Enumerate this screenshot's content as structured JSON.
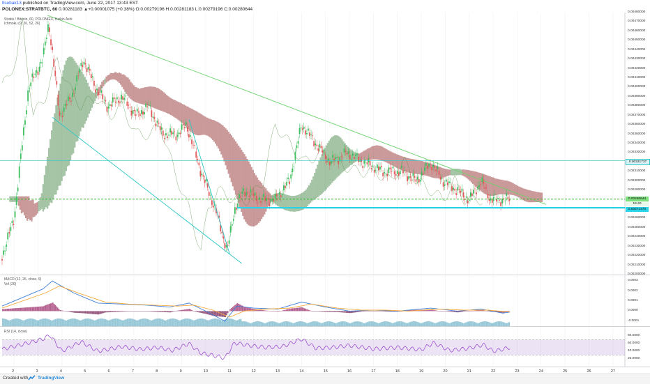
{
  "header": {
    "author": "tlsebak13",
    "published": "published on TradingView.com, June 22, 2017 13:43 EST",
    "symbol": "POLONEX:STRATBTC, 60",
    "ohlc": "0.00281183 ▲+0.00001075 (+0.38%) O:0.00279196 H:0.00281183 L:0.00279196 C:0.00280644"
  },
  "panes": {
    "main": {
      "title": "Stratis / Bitcoin, 60, POLONIEX, Heikin Ashi",
      "indicator": "Ichmoku (9, 26, 52, 26)"
    },
    "macd": {
      "title": "MACD (12, 26, close, 9)",
      "vol": "Vol (20)"
    },
    "rsi": {
      "title": "RSI (14, close)"
    }
  },
  "price_tags": {
    "upper": "0.00321737",
    "current": "0.00280644",
    "timer": "16:40",
    "support": "0.00271370"
  },
  "footer": {
    "created_with": "Created with",
    "brand": "TradingView"
  },
  "colors": {
    "up": "#3fbf5f",
    "down": "#e05b5b",
    "trendline": "#6ad26a",
    "channel": "#2ec7c7",
    "support": "#2ad3e6",
    "macd_line": "#3f7fd8",
    "signal_line": "#f4a83a",
    "rsi": "#9b4fcf",
    "cloud_bull": "#3a7d3a",
    "cloud_bear": "#8c2020"
  },
  "chart_data": {
    "type": "candlestick",
    "style": "Heikin Ashi",
    "x_ticks": [
      "2",
      "3",
      "4",
      "5",
      "6",
      "7",
      "8",
      "9",
      "10",
      "11",
      "12",
      "13",
      "14",
      "15",
      "16",
      "17",
      "18",
      "19",
      "20",
      "21",
      "22",
      "23",
      "24",
      "25",
      "26",
      "27"
    ],
    "y_ticks": [
      "0.00480000",
      "0.00470000",
      "0.00460000",
      "0.00450000",
      "0.00440000",
      "0.00430000",
      "0.00420000",
      "0.00410000",
      "0.00400000",
      "0.00390000",
      "0.00380000",
      "0.00370000",
      "0.00360000",
      "0.00350000",
      "0.00340000",
      "0.00330000",
      "0.00310000",
      "0.00300000",
      "0.00290000",
      "0.00260000",
      "0.00250000",
      "0.00240000",
      "0.00230000",
      "0.00220000",
      "0.00210000",
      "0.00200000"
    ],
    "ylim": [
      0.002,
      0.0048
    ],
    "xlim": [
      1.5,
      27.5
    ],
    "price_path": [
      [
        1.5,
        0.0022
      ],
      [
        2.0,
        0.0026
      ],
      [
        2.6,
        0.004
      ],
      [
        3.2,
        0.0043
      ],
      [
        3.45,
        0.0047
      ],
      [
        3.9,
        0.0037
      ],
      [
        4.4,
        0.0039
      ],
      [
        4.9,
        0.0043
      ],
      [
        5.4,
        0.004
      ],
      [
        5.9,
        0.0038
      ],
      [
        6.5,
        0.0039
      ],
      [
        7.1,
        0.0037
      ],
      [
        7.6,
        0.0038
      ],
      [
        8.2,
        0.0035
      ],
      [
        8.8,
        0.0035
      ],
      [
        9.2,
        0.0036
      ],
      [
        9.8,
        0.0031
      ],
      [
        10.4,
        0.0027
      ],
      [
        10.9,
        0.00225
      ],
      [
        11.2,
        0.0027
      ],
      [
        11.6,
        0.0029
      ],
      [
        12.3,
        0.0028
      ],
      [
        12.9,
        0.0028
      ],
      [
        13.5,
        0.003
      ],
      [
        14.0,
        0.0036
      ],
      [
        14.6,
        0.0034
      ],
      [
        15.2,
        0.0032
      ],
      [
        15.9,
        0.0033
      ],
      [
        16.6,
        0.0032
      ],
      [
        17.4,
        0.0031
      ],
      [
        18.2,
        0.0031
      ],
      [
        18.8,
        0.003
      ],
      [
        19.4,
        0.0032
      ],
      [
        19.9,
        0.003
      ],
      [
        20.5,
        0.0029
      ],
      [
        21.0,
        0.0028
      ],
      [
        21.5,
        0.003
      ],
      [
        21.9,
        0.0028
      ],
      [
        22.4,
        0.0028
      ],
      [
        22.7,
        0.0028064
      ]
    ],
    "lines": [
      {
        "name": "descending-trendline",
        "points": [
          [
            3.4,
            0.00477
          ],
          [
            24.2,
            0.00275
          ]
        ]
      },
      {
        "name": "channel-lower",
        "points": [
          [
            3.6,
            0.00368
          ],
          [
            11.5,
            0.00212
          ]
        ]
      },
      {
        "name": "channel-inner",
        "points": [
          [
            9.3,
            0.00366
          ],
          [
            11.0,
            0.00222
          ]
        ]
      },
      {
        "name": "resistance-level",
        "value": 0.00321737
      },
      {
        "name": "current-level",
        "value": 0.00280644
      },
      {
        "name": "support-level",
        "value": 0.0027137
      }
    ],
    "macd": {
      "ylim": [
        -0.00015,
        0.00035
      ],
      "y_ticks": [
        "0.0003",
        "0.0002",
        "0.0001",
        "0.0000",
        "-0.0001"
      ],
      "macd_path": [
        [
          1.5,
          5e-05
        ],
        [
          3.2,
          0.00022
        ],
        [
          3.6,
          0.0003
        ],
        [
          4.5,
          0.00018
        ],
        [
          5.5,
          8e-05
        ],
        [
          6.5,
          7e-05
        ],
        [
          7.5,
          6e-05
        ],
        [
          8.5,
          4e-05
        ],
        [
          9.3,
          8e-05
        ],
        [
          10.0,
          0.0
        ],
        [
          10.8,
          -0.0001
        ],
        [
          11.3,
          5e-05
        ],
        [
          12.0,
          3e-05
        ],
        [
          13.0,
          2e-05
        ],
        [
          14.0,
          9e-05
        ],
        [
          15.0,
          4e-05
        ],
        [
          16.0,
          0.0
        ],
        [
          17.0,
          1e-05
        ],
        [
          18.0,
          0.0
        ],
        [
          19.4,
          3e-05
        ],
        [
          20.5,
          0.0
        ],
        [
          21.5,
          2e-05
        ],
        [
          22.4,
          -2e-05
        ],
        [
          22.7,
          -1e-05
        ]
      ],
      "signal_path": [
        [
          1.5,
          3e-05
        ],
        [
          3.3,
          0.00018
        ],
        [
          3.9,
          0.00025
        ],
        [
          4.8,
          0.00017
        ],
        [
          5.8,
          9e-05
        ],
        [
          6.8,
          7e-05
        ],
        [
          7.8,
          6e-05
        ],
        [
          8.8,
          5e-05
        ],
        [
          9.5,
          6e-05
        ],
        [
          10.3,
          1e-05
        ],
        [
          11.0,
          -6e-05
        ],
        [
          11.6,
          0.0
        ],
        [
          12.5,
          2e-05
        ],
        [
          13.5,
          3e-05
        ],
        [
          14.4,
          7e-05
        ],
        [
          15.5,
          3e-05
        ],
        [
          16.5,
          1e-05
        ],
        [
          17.5,
          1e-05
        ],
        [
          18.5,
          0.0
        ],
        [
          19.7,
          2e-05
        ],
        [
          20.8,
          1e-05
        ],
        [
          21.8,
          1e-05
        ],
        [
          22.7,
          -1e-05
        ]
      ]
    },
    "rsi": {
      "ylim": [
        0,
        100
      ],
      "y_ticks": [
        "80.0000",
        "60.0000",
        "40.0000",
        "20.0000"
      ],
      "bands": [
        70,
        30
      ],
      "rsi_path": [
        [
          1.5,
          45
        ],
        [
          2.5,
          60
        ],
        [
          3.2,
          72
        ],
        [
          3.5,
          82
        ],
        [
          4.0,
          40
        ],
        [
          4.8,
          65
        ],
        [
          5.5,
          40
        ],
        [
          6.5,
          52
        ],
        [
          7.3,
          45
        ],
        [
          8.0,
          50
        ],
        [
          8.6,
          42
        ],
        [
          9.3,
          60
        ],
        [
          9.8,
          35
        ],
        [
          10.4,
          28
        ],
        [
          10.8,
          22
        ],
        [
          11.2,
          62
        ],
        [
          11.8,
          55
        ],
        [
          12.5,
          50
        ],
        [
          13.2,
          52
        ],
        [
          14.0,
          72
        ],
        [
          14.6,
          48
        ],
        [
          15.3,
          50
        ],
        [
          16.0,
          55
        ],
        [
          17.0,
          46
        ],
        [
          18.0,
          50
        ],
        [
          19.0,
          44
        ],
        [
          19.5,
          62
        ],
        [
          20.2,
          42
        ],
        [
          21.0,
          48
        ],
        [
          21.6,
          57
        ],
        [
          22.0,
          40
        ],
        [
          22.4,
          45
        ],
        [
          22.7,
          50
        ]
      ]
    }
  }
}
